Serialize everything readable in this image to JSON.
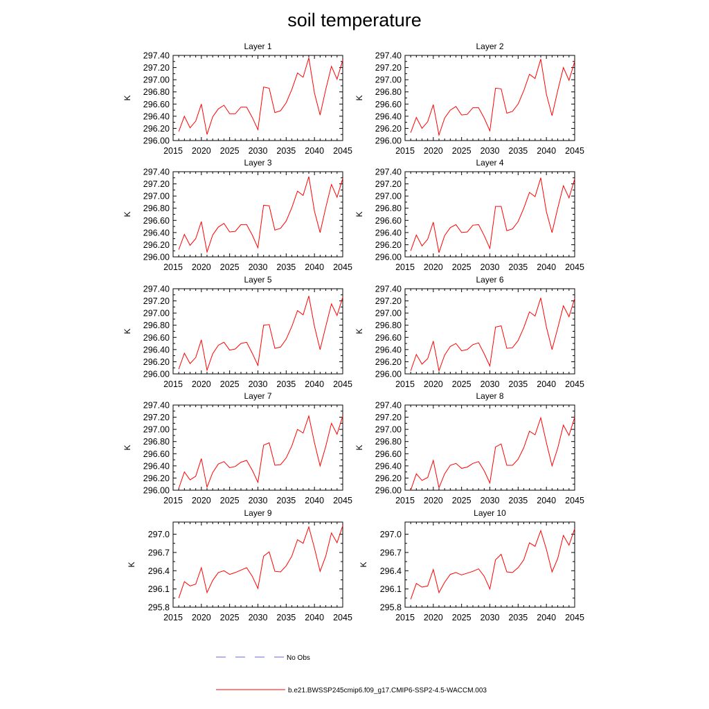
{
  "title": "soil temperature",
  "legend": {
    "obs_label": "No Obs",
    "obs_color": "#6a6ac8",
    "model_label": "b.e21.BWSSP245cmip6.f09_g17.CMIP6-SSP2-4.5-WACCM.003",
    "model_color": "#ff0000"
  },
  "chart_data": [
    {
      "type": "line",
      "title": "Layer 1",
      "ylabel": "K",
      "xlim": [
        2015,
        2045
      ],
      "ylim": [
        296.0,
        297.4
      ],
      "xticks": [
        2015,
        2020,
        2025,
        2030,
        2035,
        2040,
        2045
      ],
      "yticks": [
        296.0,
        296.2,
        296.4,
        296.6,
        296.8,
        297.0,
        297.2,
        297.4
      ],
      "ytick_labels": [
        "296.00",
        "296.20",
        "296.40",
        "296.60",
        "296.80",
        "297.00",
        "297.20",
        "297.40"
      ],
      "x": [
        2016,
        2017,
        2018,
        2019,
        2020,
        2021,
        2022,
        2023,
        2024,
        2025,
        2026,
        2027,
        2028,
        2029,
        2030,
        2031,
        2032,
        2033,
        2034,
        2035,
        2036,
        2037,
        2038,
        2039,
        2040,
        2041,
        2042,
        2043,
        2044,
        2045
      ],
      "series": [
        {
          "name": "b.e21.BWSSP245cmip6.f09_g17.CMIP6-SSP2-4.5-WACCM.003",
          "values": [
            296.15,
            296.4,
            296.21,
            296.32,
            296.6,
            296.1,
            296.39,
            296.52,
            296.58,
            296.44,
            296.44,
            296.55,
            296.55,
            296.38,
            296.18,
            296.88,
            296.86,
            296.46,
            296.49,
            296.62,
            296.84,
            297.11,
            297.04,
            297.36,
            296.78,
            296.42,
            296.84,
            297.22,
            297.01,
            297.32
          ]
        }
      ]
    },
    {
      "type": "line",
      "title": "Layer 2",
      "ylabel": "K",
      "xlim": [
        2015,
        2045
      ],
      "ylim": [
        296.0,
        297.4
      ],
      "xticks": [
        2015,
        2020,
        2025,
        2030,
        2035,
        2040,
        2045
      ],
      "yticks": [
        296.0,
        296.2,
        296.4,
        296.6,
        296.8,
        297.0,
        297.2,
        297.4
      ],
      "ytick_labels": [
        "296.00",
        "296.20",
        "296.40",
        "296.60",
        "296.80",
        "297.00",
        "297.20",
        "297.40"
      ],
      "x": [
        2016,
        2017,
        2018,
        2019,
        2020,
        2021,
        2022,
        2023,
        2024,
        2025,
        2026,
        2027,
        2028,
        2029,
        2030,
        2031,
        2032,
        2033,
        2034,
        2035,
        2036,
        2037,
        2038,
        2039,
        2040,
        2041,
        2042,
        2043,
        2044,
        2045
      ],
      "series": [
        {
          "name": "b.e21.BWSSP245cmip6.f09_g17.CMIP6-SSP2-4.5-WACCM.003",
          "values": [
            296.13,
            296.38,
            296.2,
            296.31,
            296.59,
            296.09,
            296.37,
            296.5,
            296.56,
            296.42,
            296.43,
            296.54,
            296.54,
            296.37,
            296.16,
            296.86,
            296.85,
            296.45,
            296.48,
            296.6,
            296.82,
            297.09,
            297.02,
            297.34,
            296.76,
            296.41,
            296.82,
            297.2,
            296.99,
            297.3
          ]
        }
      ]
    },
    {
      "type": "line",
      "title": "Layer 3",
      "ylabel": "K",
      "xlim": [
        2015,
        2045
      ],
      "ylim": [
        296.0,
        297.4
      ],
      "xticks": [
        2015,
        2020,
        2025,
        2030,
        2035,
        2040,
        2045
      ],
      "yticks": [
        296.0,
        296.2,
        296.4,
        296.6,
        296.8,
        297.0,
        297.2,
        297.4
      ],
      "ytick_labels": [
        "296.00",
        "296.20",
        "296.40",
        "296.60",
        "296.80",
        "297.00",
        "297.20",
        "297.40"
      ],
      "x": [
        2016,
        2017,
        2018,
        2019,
        2020,
        2021,
        2022,
        2023,
        2024,
        2025,
        2026,
        2027,
        2028,
        2029,
        2030,
        2031,
        2032,
        2033,
        2034,
        2035,
        2036,
        2037,
        2038,
        2039,
        2040,
        2041,
        2042,
        2043,
        2044,
        2045
      ],
      "series": [
        {
          "name": "b.e21.BWSSP245cmip6.f09_g17.CMIP6-SSP2-4.5-WACCM.003",
          "values": [
            296.12,
            296.37,
            296.19,
            296.3,
            296.58,
            296.08,
            296.36,
            296.49,
            296.55,
            296.41,
            296.42,
            296.53,
            296.53,
            296.36,
            296.15,
            296.85,
            296.84,
            296.44,
            296.47,
            296.59,
            296.81,
            297.08,
            297.01,
            297.32,
            296.75,
            296.4,
            296.81,
            297.19,
            296.98,
            297.29
          ]
        }
      ]
    },
    {
      "type": "line",
      "title": "Layer 4",
      "ylabel": "K",
      "xlim": [
        2015,
        2045
      ],
      "ylim": [
        296.0,
        297.4
      ],
      "xticks": [
        2015,
        2020,
        2025,
        2030,
        2035,
        2040,
        2045
      ],
      "yticks": [
        296.0,
        296.2,
        296.4,
        296.6,
        296.8,
        297.0,
        297.2,
        297.4
      ],
      "ytick_labels": [
        "296.00",
        "296.20",
        "296.40",
        "296.60",
        "296.80",
        "297.00",
        "297.20",
        "297.40"
      ],
      "x": [
        2016,
        2017,
        2018,
        2019,
        2020,
        2021,
        2022,
        2023,
        2024,
        2025,
        2026,
        2027,
        2028,
        2029,
        2030,
        2031,
        2032,
        2033,
        2034,
        2035,
        2036,
        2037,
        2038,
        2039,
        2040,
        2041,
        2042,
        2043,
        2044,
        2045
      ],
      "series": [
        {
          "name": "b.e21.BWSSP245cmip6.f09_g17.CMIP6-SSP2-4.5-WACCM.003",
          "values": [
            296.1,
            296.36,
            296.18,
            296.29,
            296.57,
            296.07,
            296.35,
            296.48,
            296.53,
            296.4,
            296.41,
            296.52,
            296.53,
            296.35,
            296.14,
            296.83,
            296.83,
            296.43,
            296.46,
            296.58,
            296.8,
            297.06,
            296.99,
            297.3,
            296.74,
            296.4,
            296.8,
            297.17,
            296.97,
            297.28
          ]
        }
      ]
    },
    {
      "type": "line",
      "title": "Layer 5",
      "ylabel": "K",
      "xlim": [
        2015,
        2045
      ],
      "ylim": [
        296.0,
        297.4
      ],
      "xticks": [
        2015,
        2020,
        2025,
        2030,
        2035,
        2040,
        2045
      ],
      "yticks": [
        296.0,
        296.2,
        296.4,
        296.6,
        296.8,
        297.0,
        297.2,
        297.4
      ],
      "ytick_labels": [
        "296.00",
        "296.20",
        "296.40",
        "296.60",
        "296.80",
        "297.00",
        "297.20",
        "297.40"
      ],
      "x": [
        2016,
        2017,
        2018,
        2019,
        2020,
        2021,
        2022,
        2023,
        2024,
        2025,
        2026,
        2027,
        2028,
        2029,
        2030,
        2031,
        2032,
        2033,
        2034,
        2035,
        2036,
        2037,
        2038,
        2039,
        2040,
        2041,
        2042,
        2043,
        2044,
        2045
      ],
      "series": [
        {
          "name": "b.e21.BWSSP245cmip6.f09_g17.CMIP6-SSP2-4.5-WACCM.003",
          "values": [
            296.08,
            296.34,
            296.17,
            296.27,
            296.56,
            296.06,
            296.33,
            296.47,
            296.52,
            296.39,
            296.41,
            296.5,
            296.52,
            296.34,
            296.14,
            296.8,
            296.81,
            296.42,
            296.44,
            296.57,
            296.78,
            297.04,
            296.97,
            297.28,
            296.78,
            296.4,
            296.78,
            297.15,
            296.96,
            297.26
          ]
        }
      ]
    },
    {
      "type": "line",
      "title": "Layer 6",
      "ylabel": "K",
      "xlim": [
        2015,
        2045
      ],
      "ylim": [
        296.0,
        297.4
      ],
      "xticks": [
        2015,
        2020,
        2025,
        2030,
        2035,
        2040,
        2045
      ],
      "yticks": [
        296.0,
        296.2,
        296.4,
        296.6,
        296.8,
        297.0,
        297.2,
        297.4
      ],
      "ytick_labels": [
        "296.00",
        "296.20",
        "296.40",
        "296.60",
        "296.80",
        "297.00",
        "297.20",
        "297.40"
      ],
      "x": [
        2016,
        2017,
        2018,
        2019,
        2020,
        2021,
        2022,
        2023,
        2024,
        2025,
        2026,
        2027,
        2028,
        2029,
        2030,
        2031,
        2032,
        2033,
        2034,
        2035,
        2036,
        2037,
        2038,
        2039,
        2040,
        2041,
        2042,
        2043,
        2044,
        2045
      ],
      "series": [
        {
          "name": "b.e21.BWSSP245cmip6.f09_g17.CMIP6-SSP2-4.5-WACCM.003",
          "values": [
            296.05,
            296.32,
            296.16,
            296.25,
            296.54,
            296.05,
            296.31,
            296.45,
            296.5,
            296.38,
            296.4,
            296.48,
            296.51,
            296.33,
            296.13,
            296.77,
            296.79,
            296.42,
            296.43,
            296.55,
            296.76,
            297.02,
            296.95,
            297.25,
            296.77,
            296.4,
            296.75,
            297.12,
            296.94,
            297.24
          ]
        }
      ]
    },
    {
      "type": "line",
      "title": "Layer 7",
      "ylabel": "K",
      "xlim": [
        2015,
        2045
      ],
      "ylim": [
        296.0,
        297.4
      ],
      "xticks": [
        2015,
        2020,
        2025,
        2030,
        2035,
        2040,
        2045
      ],
      "yticks": [
        296.0,
        296.2,
        296.4,
        296.6,
        296.8,
        297.0,
        297.2,
        297.4
      ],
      "ytick_labels": [
        "296.00",
        "296.20",
        "296.40",
        "296.60",
        "296.80",
        "297.00",
        "297.20",
        "297.40"
      ],
      "x": [
        2016,
        2017,
        2018,
        2019,
        2020,
        2021,
        2022,
        2023,
        2024,
        2025,
        2026,
        2027,
        2028,
        2029,
        2030,
        2031,
        2032,
        2033,
        2034,
        2035,
        2036,
        2037,
        2038,
        2039,
        2040,
        2041,
        2042,
        2043,
        2044,
        2045
      ],
      "series": [
        {
          "name": "b.e21.BWSSP245cmip6.f09_g17.CMIP6-SSP2-4.5-WACCM.003",
          "values": [
            296.03,
            296.3,
            296.17,
            296.23,
            296.52,
            296.05,
            296.29,
            296.43,
            296.47,
            296.37,
            296.39,
            296.46,
            296.49,
            296.33,
            296.13,
            296.74,
            296.78,
            296.41,
            296.42,
            296.53,
            296.73,
            297.0,
            296.94,
            297.22,
            296.78,
            296.4,
            296.72,
            297.1,
            296.92,
            297.22
          ]
        }
      ]
    },
    {
      "type": "line",
      "title": "Layer 8",
      "ylabel": "K",
      "xlim": [
        2015,
        2045
      ],
      "ylim": [
        296.0,
        297.4
      ],
      "xticks": [
        2015,
        2020,
        2025,
        2030,
        2035,
        2040,
        2045
      ],
      "yticks": [
        296.0,
        296.2,
        296.4,
        296.6,
        296.8,
        297.0,
        297.2,
        297.4
      ],
      "ytick_labels": [
        "296.00",
        "296.20",
        "296.40",
        "296.60",
        "296.80",
        "297.00",
        "297.20",
        "297.40"
      ],
      "x": [
        2016,
        2017,
        2018,
        2019,
        2020,
        2021,
        2022,
        2023,
        2024,
        2025,
        2026,
        2027,
        2028,
        2029,
        2030,
        2031,
        2032,
        2033,
        2034,
        2035,
        2036,
        2037,
        2038,
        2039,
        2040,
        2041,
        2042,
        2043,
        2044,
        2045
      ],
      "series": [
        {
          "name": "b.e21.BWSSP245cmip6.f09_g17.CMIP6-SSP2-4.5-WACCM.003",
          "values": [
            296.0,
            296.27,
            296.16,
            296.21,
            296.49,
            296.04,
            296.27,
            296.41,
            296.44,
            296.36,
            296.38,
            296.44,
            296.47,
            296.32,
            296.12,
            296.71,
            296.76,
            296.41,
            296.41,
            296.51,
            296.7,
            296.97,
            296.91,
            297.19,
            296.78,
            296.4,
            296.69,
            297.07,
            296.9,
            297.2
          ]
        }
      ]
    },
    {
      "type": "line",
      "title": "Layer 9",
      "ylabel": "K",
      "xlim": [
        2015,
        2045
      ],
      "ylim": [
        295.8,
        297.2
      ],
      "xticks": [
        2015,
        2020,
        2025,
        2030,
        2035,
        2040,
        2045
      ],
      "yticks": [
        295.8,
        296.1,
        296.4,
        296.7,
        297.0
      ],
      "ytick_labels": [
        "295.8",
        "296.1",
        "296.4",
        "296.7",
        "297.0"
      ],
      "x": [
        2016,
        2017,
        2018,
        2019,
        2020,
        2021,
        2022,
        2023,
        2024,
        2025,
        2026,
        2027,
        2028,
        2029,
        2030,
        2031,
        2032,
        2033,
        2034,
        2035,
        2036,
        2037,
        2038,
        2039,
        2040,
        2041,
        2042,
        2043,
        2044,
        2045
      ],
      "series": [
        {
          "name": "b.e21.BWSSP245cmip6.f09_g17.CMIP6-SSP2-4.5-WACCM.003",
          "values": [
            295.95,
            296.22,
            296.15,
            296.18,
            296.45,
            296.04,
            296.24,
            296.37,
            296.4,
            296.34,
            296.37,
            296.41,
            296.45,
            296.31,
            296.11,
            296.64,
            296.71,
            296.39,
            296.38,
            296.48,
            296.64,
            296.91,
            296.85,
            297.12,
            296.77,
            296.39,
            296.64,
            297.02,
            296.86,
            297.14
          ]
        }
      ]
    },
    {
      "type": "line",
      "title": "Layer 10",
      "ylabel": "K",
      "xlim": [
        2015,
        2045
      ],
      "ylim": [
        295.8,
        297.2
      ],
      "xticks": [
        2015,
        2020,
        2025,
        2030,
        2035,
        2040,
        2045
      ],
      "yticks": [
        295.8,
        296.1,
        296.4,
        296.7,
        297.0
      ],
      "ytick_labels": [
        "295.8",
        "296.1",
        "296.4",
        "296.7",
        "297.0"
      ],
      "x": [
        2016,
        2017,
        2018,
        2019,
        2020,
        2021,
        2022,
        2023,
        2024,
        2025,
        2026,
        2027,
        2028,
        2029,
        2030,
        2031,
        2032,
        2033,
        2034,
        2035,
        2036,
        2037,
        2038,
        2039,
        2040,
        2041,
        2042,
        2043,
        2044,
        2045
      ],
      "series": [
        {
          "name": "b.e21.BWSSP245cmip6.f09_g17.CMIP6-SSP2-4.5-WACCM.003",
          "values": [
            295.93,
            296.19,
            296.13,
            296.15,
            296.42,
            296.04,
            296.21,
            296.34,
            296.37,
            296.33,
            296.36,
            296.39,
            296.43,
            296.31,
            296.1,
            296.58,
            296.67,
            296.38,
            296.37,
            296.45,
            296.58,
            296.86,
            296.8,
            297.06,
            296.75,
            296.38,
            296.6,
            296.98,
            296.82,
            297.09
          ]
        }
      ]
    }
  ]
}
